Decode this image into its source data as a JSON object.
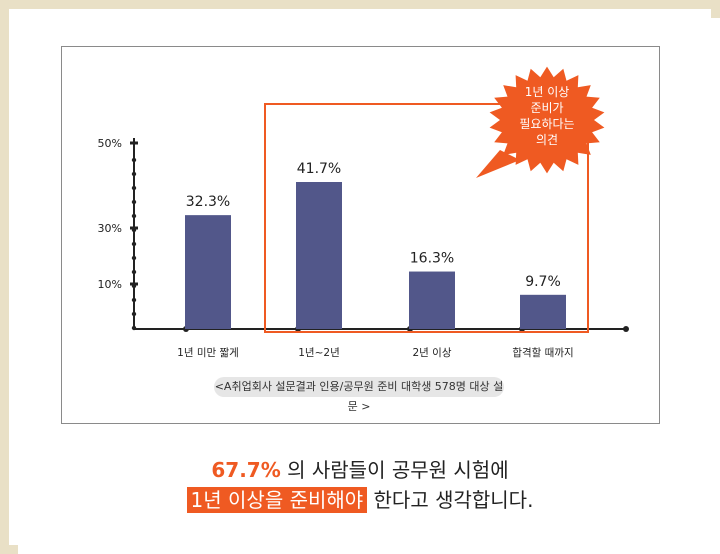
{
  "chart_data": {
    "type": "bar",
    "categories": [
      "1년 미만 짧게",
      "1년~2년",
      "2년 이상",
      "합격할 때까지"
    ],
    "values": [
      32.3,
      41.7,
      16.3,
      9.7
    ],
    "value_labels": [
      "32.3%",
      "41.7%",
      "16.3%",
      "9.7%"
    ],
    "yticks": [
      "10%",
      "30%",
      "50%"
    ],
    "ytick_values": [
      10,
      30,
      50
    ],
    "bar_color": "#52578a",
    "highlight_color": "#ef5a22",
    "callout": [
      "1년 이상",
      "준비가",
      "필요하다는",
      "의견"
    ],
    "source": "<A취업회사 설문결과 인용/공무원 준비 대학생 578명 대상 설문 >"
  },
  "caption": {
    "line1_highlight": "67.7%",
    "line1_rest": " 의 사람들이 공무원 시험에",
    "line2_highlight": "1년 이상을 준비해야",
    "line2_rest": " 한다고 생각합니다."
  }
}
